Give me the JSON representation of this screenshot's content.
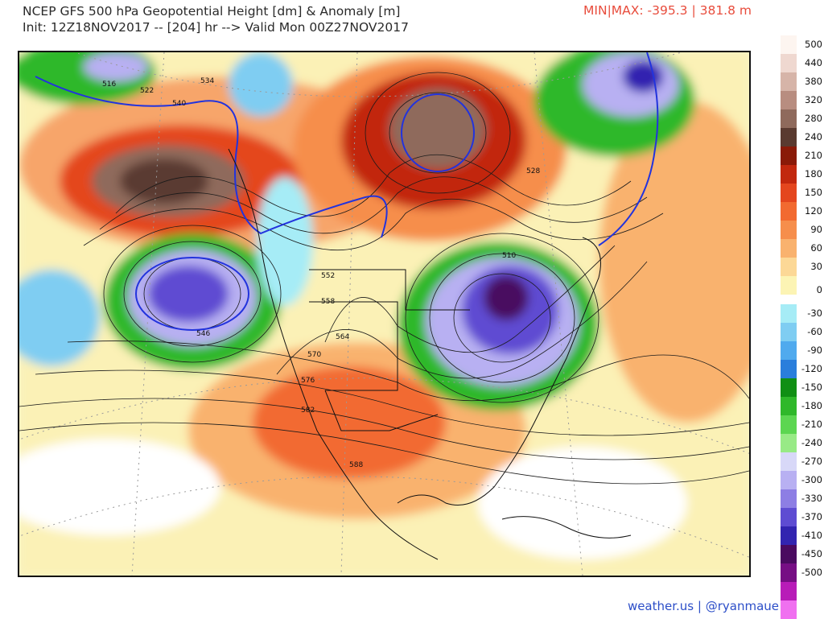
{
  "header": {
    "title_line1": "NCEP GFS 500 hPa Geopotential Height [dm] & Anomaly [m]",
    "title_line2": "Init: 12Z18NOV2017 -- [204] hr --> Valid Mon 00Z27NOV2017",
    "minmax": "MIN|MAX: -395.3 | 381.8 m"
  },
  "legend": {
    "labels": [
      "500",
      "440",
      "380",
      "320",
      "280",
      "240",
      "210",
      "180",
      "150",
      "120",
      "90",
      "60",
      "30",
      "0",
      "-30",
      "-60",
      "-90",
      "-120",
      "-150",
      "-180",
      "-210",
      "-240",
      "-270",
      "-300",
      "-330",
      "-370",
      "-410",
      "-450",
      "-500"
    ],
    "positive_colors": [
      "#fdf5f0",
      "#efd8d0",
      "#d6b4a8",
      "#b88d80",
      "#8f6a5c",
      "#5a3a30",
      "#8a1a08",
      "#c2280e",
      "#e4461e",
      "#f26a30",
      "#f68e4c",
      "#f9b26e",
      "#fcd896",
      "#fcf4b4"
    ],
    "negative_colors": [
      "#a6ecf6",
      "#7fcdf2",
      "#50aaee",
      "#2a7edc",
      "#108f14",
      "#2fb82a",
      "#5cd651",
      "#98ea86",
      "#d8d8f8",
      "#b8b0f2",
      "#8d7ee4",
      "#5e4cd2",
      "#3224b0",
      "#4a0a60",
      "#760e84",
      "#b81cb8",
      "#f070f0"
    ]
  },
  "map": {
    "contour_labels": [
      "516",
      "522",
      "534",
      "540",
      "546",
      "552",
      "558",
      "564",
      "570",
      "576",
      "582",
      "588",
      "528",
      "510"
    ]
  },
  "footer": {
    "credit": "weather.us | @ryanmaue"
  }
}
